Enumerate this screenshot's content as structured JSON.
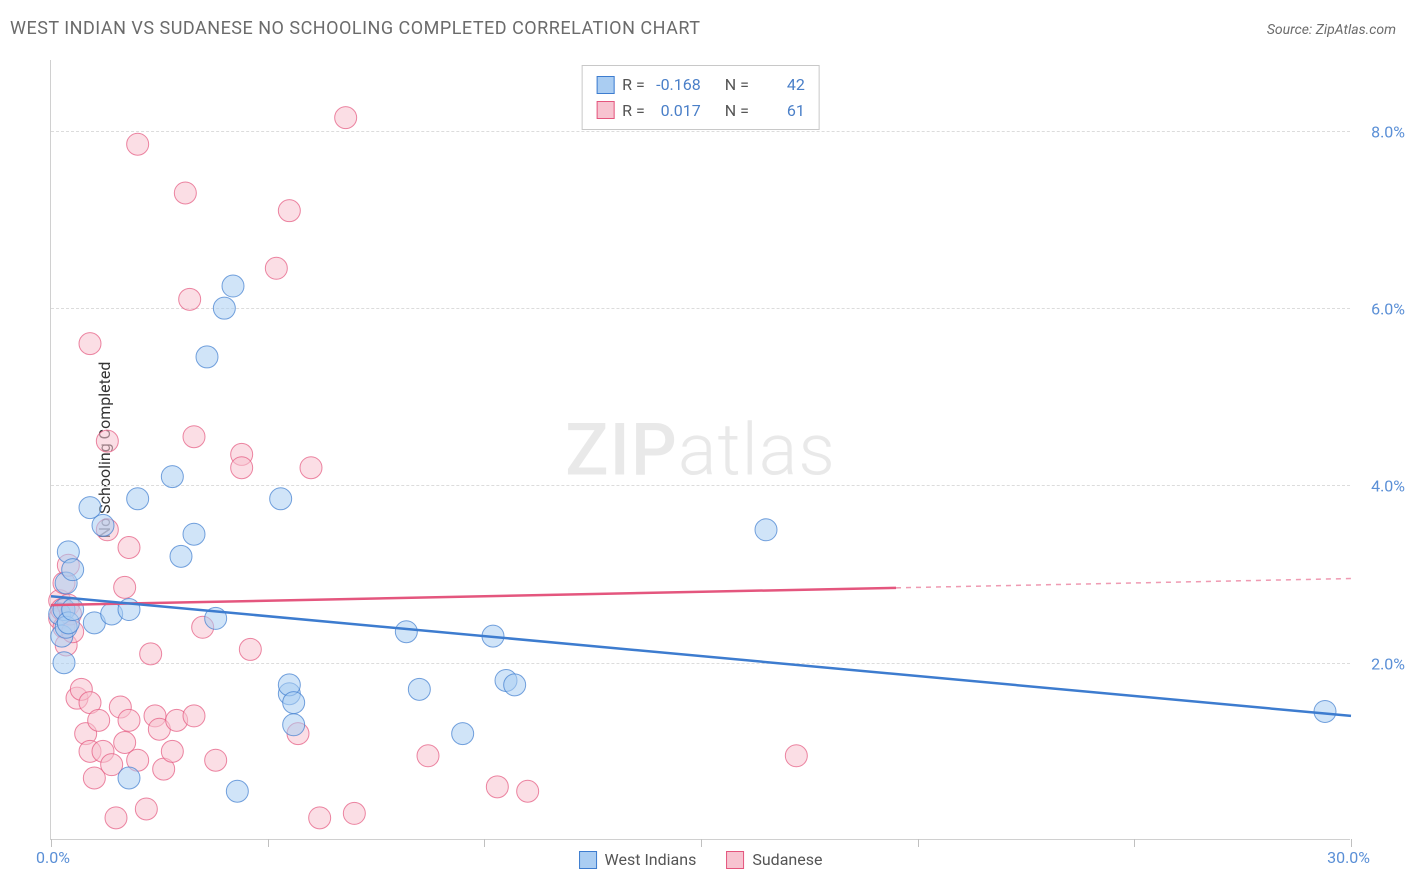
{
  "title": "WEST INDIAN VS SUDANESE NO SCHOOLING COMPLETED CORRELATION CHART",
  "source_label": "Source: ZipAtlas.com",
  "watermark": {
    "bold": "ZIP",
    "light": "atlas"
  },
  "y_axis_title": "No Schooling Completed",
  "chart": {
    "type": "scatter",
    "background_color": "#ffffff",
    "grid_color": "#dcdcdc",
    "border_color": "#d0d0d0",
    "xlim": [
      0,
      30
    ],
    "ylim": [
      0,
      8.8
    ],
    "x_ticks": [
      0,
      5,
      10,
      15,
      20,
      25,
      30
    ],
    "x_tick_labels": {
      "min": "0.0%",
      "max": "30.0%"
    },
    "y_ticks": [
      2.0,
      4.0,
      6.0,
      8.0
    ],
    "y_tick_labels": [
      "2.0%",
      "4.0%",
      "6.0%",
      "8.0%"
    ],
    "marker_radius": 11,
    "marker_opacity": 0.55,
    "line_width": 2.5,
    "series": [
      {
        "id": "west_indians",
        "label": "West Indians",
        "color": "#6fa8e8",
        "stroke": "#3d7ccf",
        "fill": "#aacdf2",
        "R": "-0.168",
        "N": "42",
        "trend": {
          "x1": 0,
          "y1": 2.75,
          "x2": 30,
          "y2": 1.4,
          "dashed_from_x": null
        },
        "points": [
          [
            0.2,
            2.55
          ],
          [
            0.25,
            2.3
          ],
          [
            0.3,
            2.0
          ],
          [
            0.3,
            2.6
          ],
          [
            0.35,
            2.4
          ],
          [
            0.35,
            2.9
          ],
          [
            0.4,
            2.45
          ],
          [
            0.4,
            3.25
          ],
          [
            0.5,
            2.6
          ],
          [
            0.5,
            3.05
          ],
          [
            0.9,
            3.75
          ],
          [
            1.0,
            2.45
          ],
          [
            1.2,
            3.55
          ],
          [
            1.4,
            2.55
          ],
          [
            1.8,
            2.6
          ],
          [
            1.8,
            0.7
          ],
          [
            2.0,
            3.85
          ],
          [
            2.8,
            4.1
          ],
          [
            3.0,
            3.2
          ],
          [
            3.3,
            3.45
          ],
          [
            3.6,
            5.45
          ],
          [
            3.8,
            2.5
          ],
          [
            4.0,
            6.0
          ],
          [
            4.2,
            6.25
          ],
          [
            4.3,
            0.55
          ],
          [
            5.3,
            3.85
          ],
          [
            5.5,
            1.65
          ],
          [
            5.5,
            1.75
          ],
          [
            5.6,
            1.3
          ],
          [
            5.6,
            1.55
          ],
          [
            8.2,
            2.35
          ],
          [
            8.5,
            1.7
          ],
          [
            9.5,
            1.2
          ],
          [
            10.2,
            2.3
          ],
          [
            10.5,
            1.8
          ],
          [
            10.7,
            1.75
          ],
          [
            16.5,
            3.5
          ],
          [
            29.4,
            1.45
          ]
        ]
      },
      {
        "id": "sudanese",
        "label": "Sudanese",
        "color": "#f29fb5",
        "stroke": "#e4567e",
        "fill": "#f7c3d0",
        "R": "0.017",
        "N": "61",
        "trend": {
          "x1": 0,
          "y1": 2.65,
          "x2": 30,
          "y2": 2.95,
          "dashed_from_x": 19.5
        },
        "points": [
          [
            0.2,
            2.7
          ],
          [
            0.2,
            2.5
          ],
          [
            0.25,
            2.6
          ],
          [
            0.3,
            2.4
          ],
          [
            0.3,
            2.9
          ],
          [
            0.35,
            2.2
          ],
          [
            0.4,
            2.65
          ],
          [
            0.4,
            3.1
          ],
          [
            0.45,
            2.55
          ],
          [
            0.5,
            2.35
          ],
          [
            0.6,
            1.6
          ],
          [
            0.7,
            1.7
          ],
          [
            0.8,
            1.2
          ],
          [
            0.9,
            1.0
          ],
          [
            0.9,
            1.55
          ],
          [
            0.9,
            5.6
          ],
          [
            1.0,
            0.7
          ],
          [
            1.1,
            1.35
          ],
          [
            1.2,
            1.0
          ],
          [
            1.3,
            4.5
          ],
          [
            1.3,
            3.5
          ],
          [
            1.4,
            0.85
          ],
          [
            1.5,
            0.25
          ],
          [
            1.6,
            1.5
          ],
          [
            1.7,
            2.85
          ],
          [
            1.7,
            1.1
          ],
          [
            1.8,
            1.35
          ],
          [
            1.8,
            3.3
          ],
          [
            2.0,
            0.9
          ],
          [
            2.0,
            7.85
          ],
          [
            2.2,
            0.35
          ],
          [
            2.3,
            2.1
          ],
          [
            2.4,
            1.4
          ],
          [
            2.5,
            1.25
          ],
          [
            2.6,
            0.8
          ],
          [
            2.8,
            1.0
          ],
          [
            2.9,
            1.35
          ],
          [
            3.1,
            7.3
          ],
          [
            3.2,
            6.1
          ],
          [
            3.3,
            1.4
          ],
          [
            3.3,
            4.55
          ],
          [
            3.5,
            2.4
          ],
          [
            3.8,
            0.9
          ],
          [
            4.4,
            4.35
          ],
          [
            4.4,
            4.2
          ],
          [
            4.6,
            2.15
          ],
          [
            5.2,
            6.45
          ],
          [
            5.5,
            7.1
          ],
          [
            5.7,
            1.2
          ],
          [
            6.0,
            4.2
          ],
          [
            6.2,
            0.25
          ],
          [
            6.8,
            8.15
          ],
          [
            7.0,
            0.3
          ],
          [
            8.7,
            0.95
          ],
          [
            10.3,
            0.6
          ],
          [
            11.0,
            0.55
          ],
          [
            17.2,
            0.95
          ]
        ]
      }
    ]
  },
  "stat_legend": {
    "R_label": "R =",
    "N_label": "N ="
  },
  "colors": {
    "title_text": "#6b6b6b",
    "axis_label": "#5a8fd6",
    "stat_value": "#4a7fc8"
  },
  "typography": {
    "title_fontsize": 18,
    "axis_fontsize": 16,
    "legend_fontsize": 16
  }
}
